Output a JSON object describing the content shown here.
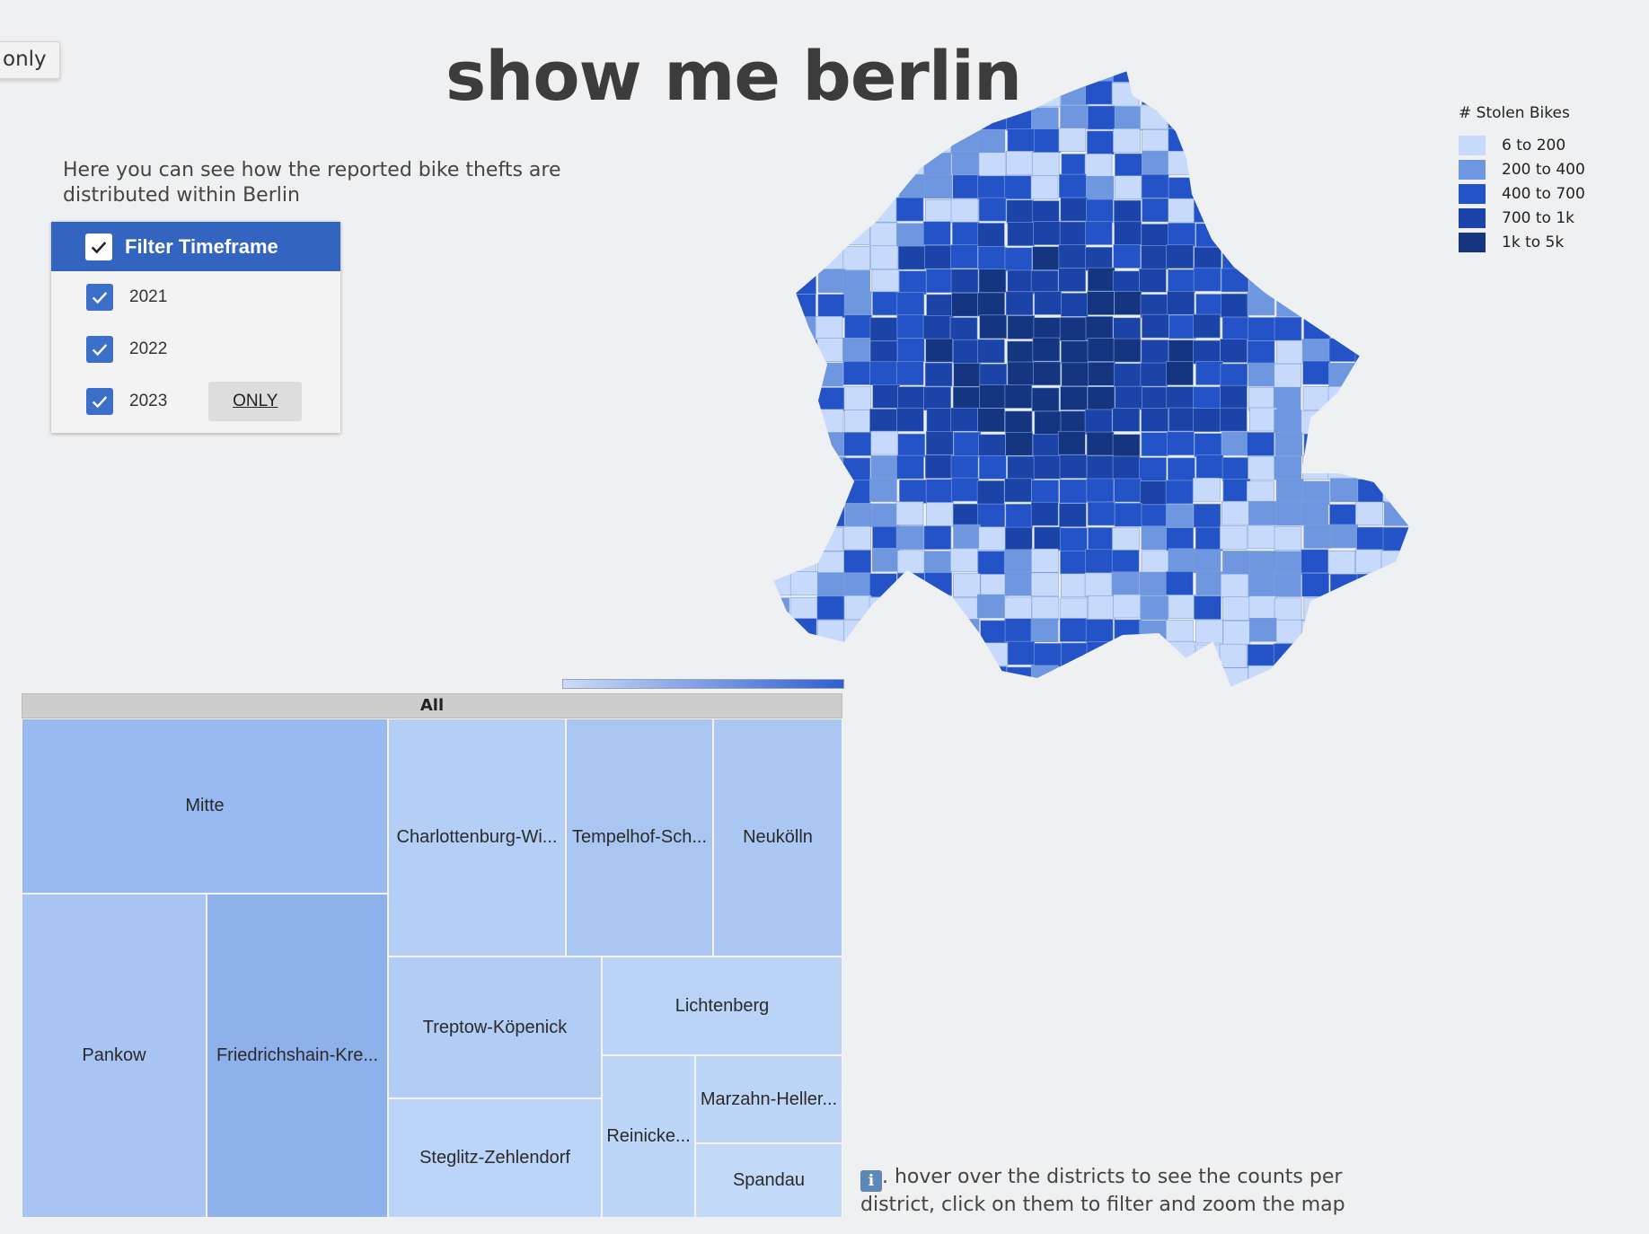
{
  "tooltip": {
    "label": "only"
  },
  "page": {
    "title": "show me berlin",
    "intro": "Here you can see how the reported bike thefts are distributed within Berlin",
    "hint_icon": "ℹ️",
    "hint": ". hover over the districts to see the counts per district, click on them to filter and zoom the map"
  },
  "filter": {
    "header": "Filter Timeframe",
    "header_checked": true,
    "items": [
      {
        "label": "2021",
        "checked": true
      },
      {
        "label": "2022",
        "checked": true
      },
      {
        "label": "2023",
        "checked": true,
        "only_label": "ONLY"
      }
    ]
  },
  "legend": {
    "title": "# Stolen Bikes",
    "items": [
      {
        "label": "6 to 200",
        "color": "#c8dafb"
      },
      {
        "label": "200 to 400",
        "color": "#6e97e0"
      },
      {
        "label": "400 to 700",
        "color": "#2453c8"
      },
      {
        "label": "700 to 1k",
        "color": "#1b43a8"
      },
      {
        "label": "1k to 5k",
        "color": "#153581"
      }
    ]
  },
  "treemap": {
    "root_label": "All",
    "districts": [
      {
        "label": "Mitte"
      },
      {
        "label": "Charlottenburg-Wi..."
      },
      {
        "label": "Tempelhof-Sch..."
      },
      {
        "label": "Neukölln"
      },
      {
        "label": "Pankow"
      },
      {
        "label": "Friedrichshain-Kre..."
      },
      {
        "label": "Treptow-Köpenick"
      },
      {
        "label": "Lichtenberg"
      },
      {
        "label": "Steglitz-Zehlendorf"
      },
      {
        "label": "Reinicke..."
      },
      {
        "label": "Marzahn-Heller..."
      },
      {
        "label": "Spandau"
      }
    ]
  },
  "colors": {
    "accent": "#3264c0",
    "background": "#eff0f1"
  }
}
